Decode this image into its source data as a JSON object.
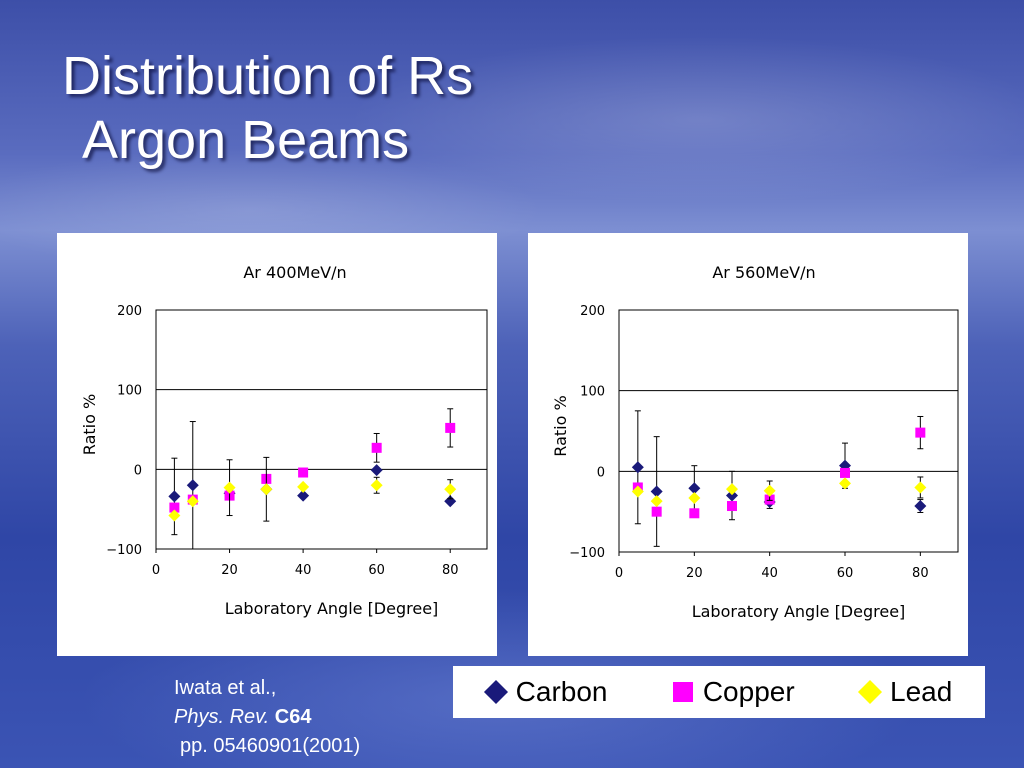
{
  "slide": {
    "title_line1": "Distribution of Rs",
    "title_line2": "Argon Beams"
  },
  "colors": {
    "carbon": "#1a1a7a",
    "copper": "#ff00ff",
    "lead": "#ffff00"
  },
  "chart_data": [
    {
      "type": "scatter",
      "title": "Ar 400MeV/n",
      "xlabel": "Laboratory Angle [Degree]",
      "ylabel": "Ratio %",
      "xlim": [
        0,
        90
      ],
      "ylim": [
        -100,
        200
      ],
      "xticks": [
        0,
        20,
        40,
        60,
        80
      ],
      "yticks": [
        -100,
        0,
        100,
        200
      ],
      "xtick_labels": [
        "0",
        "20",
        "40",
        "60",
        "80"
      ],
      "ytick_labels": [
        "−100",
        "0",
        "100",
        "200"
      ],
      "grid": "horizontal",
      "series": [
        {
          "name": "Carbon",
          "marker": "diamond",
          "points": [
            {
              "x": 5,
              "y": -34,
              "err": 48
            },
            {
              "x": 10,
              "y": -20,
              "err": 80
            },
            {
              "x": 20,
              "y": -30,
              "err": 0
            },
            {
              "x": 30,
              "y": -25,
              "err": 0
            },
            {
              "x": 40,
              "y": -33,
              "err": 0
            },
            {
              "x": 60,
              "y": -1,
              "err": 0
            },
            {
              "x": 80,
              "y": -40,
              "err": 0
            }
          ]
        },
        {
          "name": "Copper",
          "marker": "square",
          "points": [
            {
              "x": 5,
              "y": -48,
              "err": 0
            },
            {
              "x": 10,
              "y": -38,
              "err": 0
            },
            {
              "x": 20,
              "y": -33,
              "err": 0
            },
            {
              "x": 30,
              "y": -12,
              "err": 0
            },
            {
              "x": 40,
              "y": -4,
              "err": 0
            },
            {
              "x": 60,
              "y": 27,
              "err": 18
            },
            {
              "x": 80,
              "y": 52,
              "err": 24
            }
          ]
        },
        {
          "name": "Lead",
          "marker": "diamond",
          "points": [
            {
              "x": 5,
              "y": -58,
              "err": 0
            },
            {
              "x": 10,
              "y": -40,
              "err": 0
            },
            {
              "x": 20,
              "y": -23,
              "err": 35
            },
            {
              "x": 30,
              "y": -25,
              "err": 40
            },
            {
              "x": 40,
              "y": -22,
              "err": 0
            },
            {
              "x": 60,
              "y": -20,
              "err": 10
            },
            {
              "x": 80,
              "y": -25,
              "err": 12
            }
          ]
        }
      ]
    },
    {
      "type": "scatter",
      "title": "Ar 560MeV/n",
      "xlabel": "Laboratory Angle [Degree]",
      "ylabel": "Ratio %",
      "xlim": [
        0,
        90
      ],
      "ylim": [
        -100,
        200
      ],
      "xticks": [
        0,
        20,
        40,
        60,
        80
      ],
      "yticks": [
        -100,
        0,
        100,
        200
      ],
      "xtick_labels": [
        "0",
        "20",
        "40",
        "60",
        "80"
      ],
      "ytick_labels": [
        "−100",
        "0",
        "100",
        "200"
      ],
      "grid": "horizontal",
      "series": [
        {
          "name": "Carbon",
          "marker": "diamond",
          "points": [
            {
              "x": 5,
              "y": 5,
              "err": 70
            },
            {
              "x": 10,
              "y": -25,
              "err": 68
            },
            {
              "x": 20,
              "y": -21,
              "err": 28
            },
            {
              "x": 30,
              "y": -30,
              "err": 30
            },
            {
              "x": 40,
              "y": -38,
              "err": 8
            },
            {
              "x": 60,
              "y": 7,
              "err": 28
            },
            {
              "x": 80,
              "y": -43,
              "err": 8
            }
          ]
        },
        {
          "name": "Copper",
          "marker": "square",
          "points": [
            {
              "x": 5,
              "y": -20,
              "err": 0
            },
            {
              "x": 10,
              "y": -50,
              "err": 0
            },
            {
              "x": 20,
              "y": -52,
              "err": 0
            },
            {
              "x": 30,
              "y": -43,
              "err": 0
            },
            {
              "x": 40,
              "y": -35,
              "err": 0
            },
            {
              "x": 60,
              "y": -2,
              "err": 0
            },
            {
              "x": 80,
              "y": 48,
              "err": 20
            }
          ]
        },
        {
          "name": "Lead",
          "marker": "diamond",
          "points": [
            {
              "x": 5,
              "y": -25,
              "err": 0
            },
            {
              "x": 10,
              "y": -37,
              "err": 0
            },
            {
              "x": 20,
              "y": -33,
              "err": 0
            },
            {
              "x": 30,
              "y": -22,
              "err": 0
            },
            {
              "x": 40,
              "y": -24,
              "err": 12
            },
            {
              "x": 60,
              "y": -15,
              "err": 0
            },
            {
              "x": 80,
              "y": -20,
              "err": 13
            }
          ]
        }
      ]
    }
  ],
  "legend": {
    "items": [
      {
        "label": "Carbon",
        "marker": "diamond",
        "color": "#1a1a7a"
      },
      {
        "label": "Copper",
        "marker": "square",
        "color": "#ff00ff"
      },
      {
        "label": "Lead",
        "marker": "diamond",
        "color": "#ffff00"
      }
    ]
  },
  "citation": {
    "authors": "Iwata et al.,",
    "journal": "Phys. Rev.",
    "volume": "C64",
    "pages": "pp. 05460901(2001)"
  }
}
